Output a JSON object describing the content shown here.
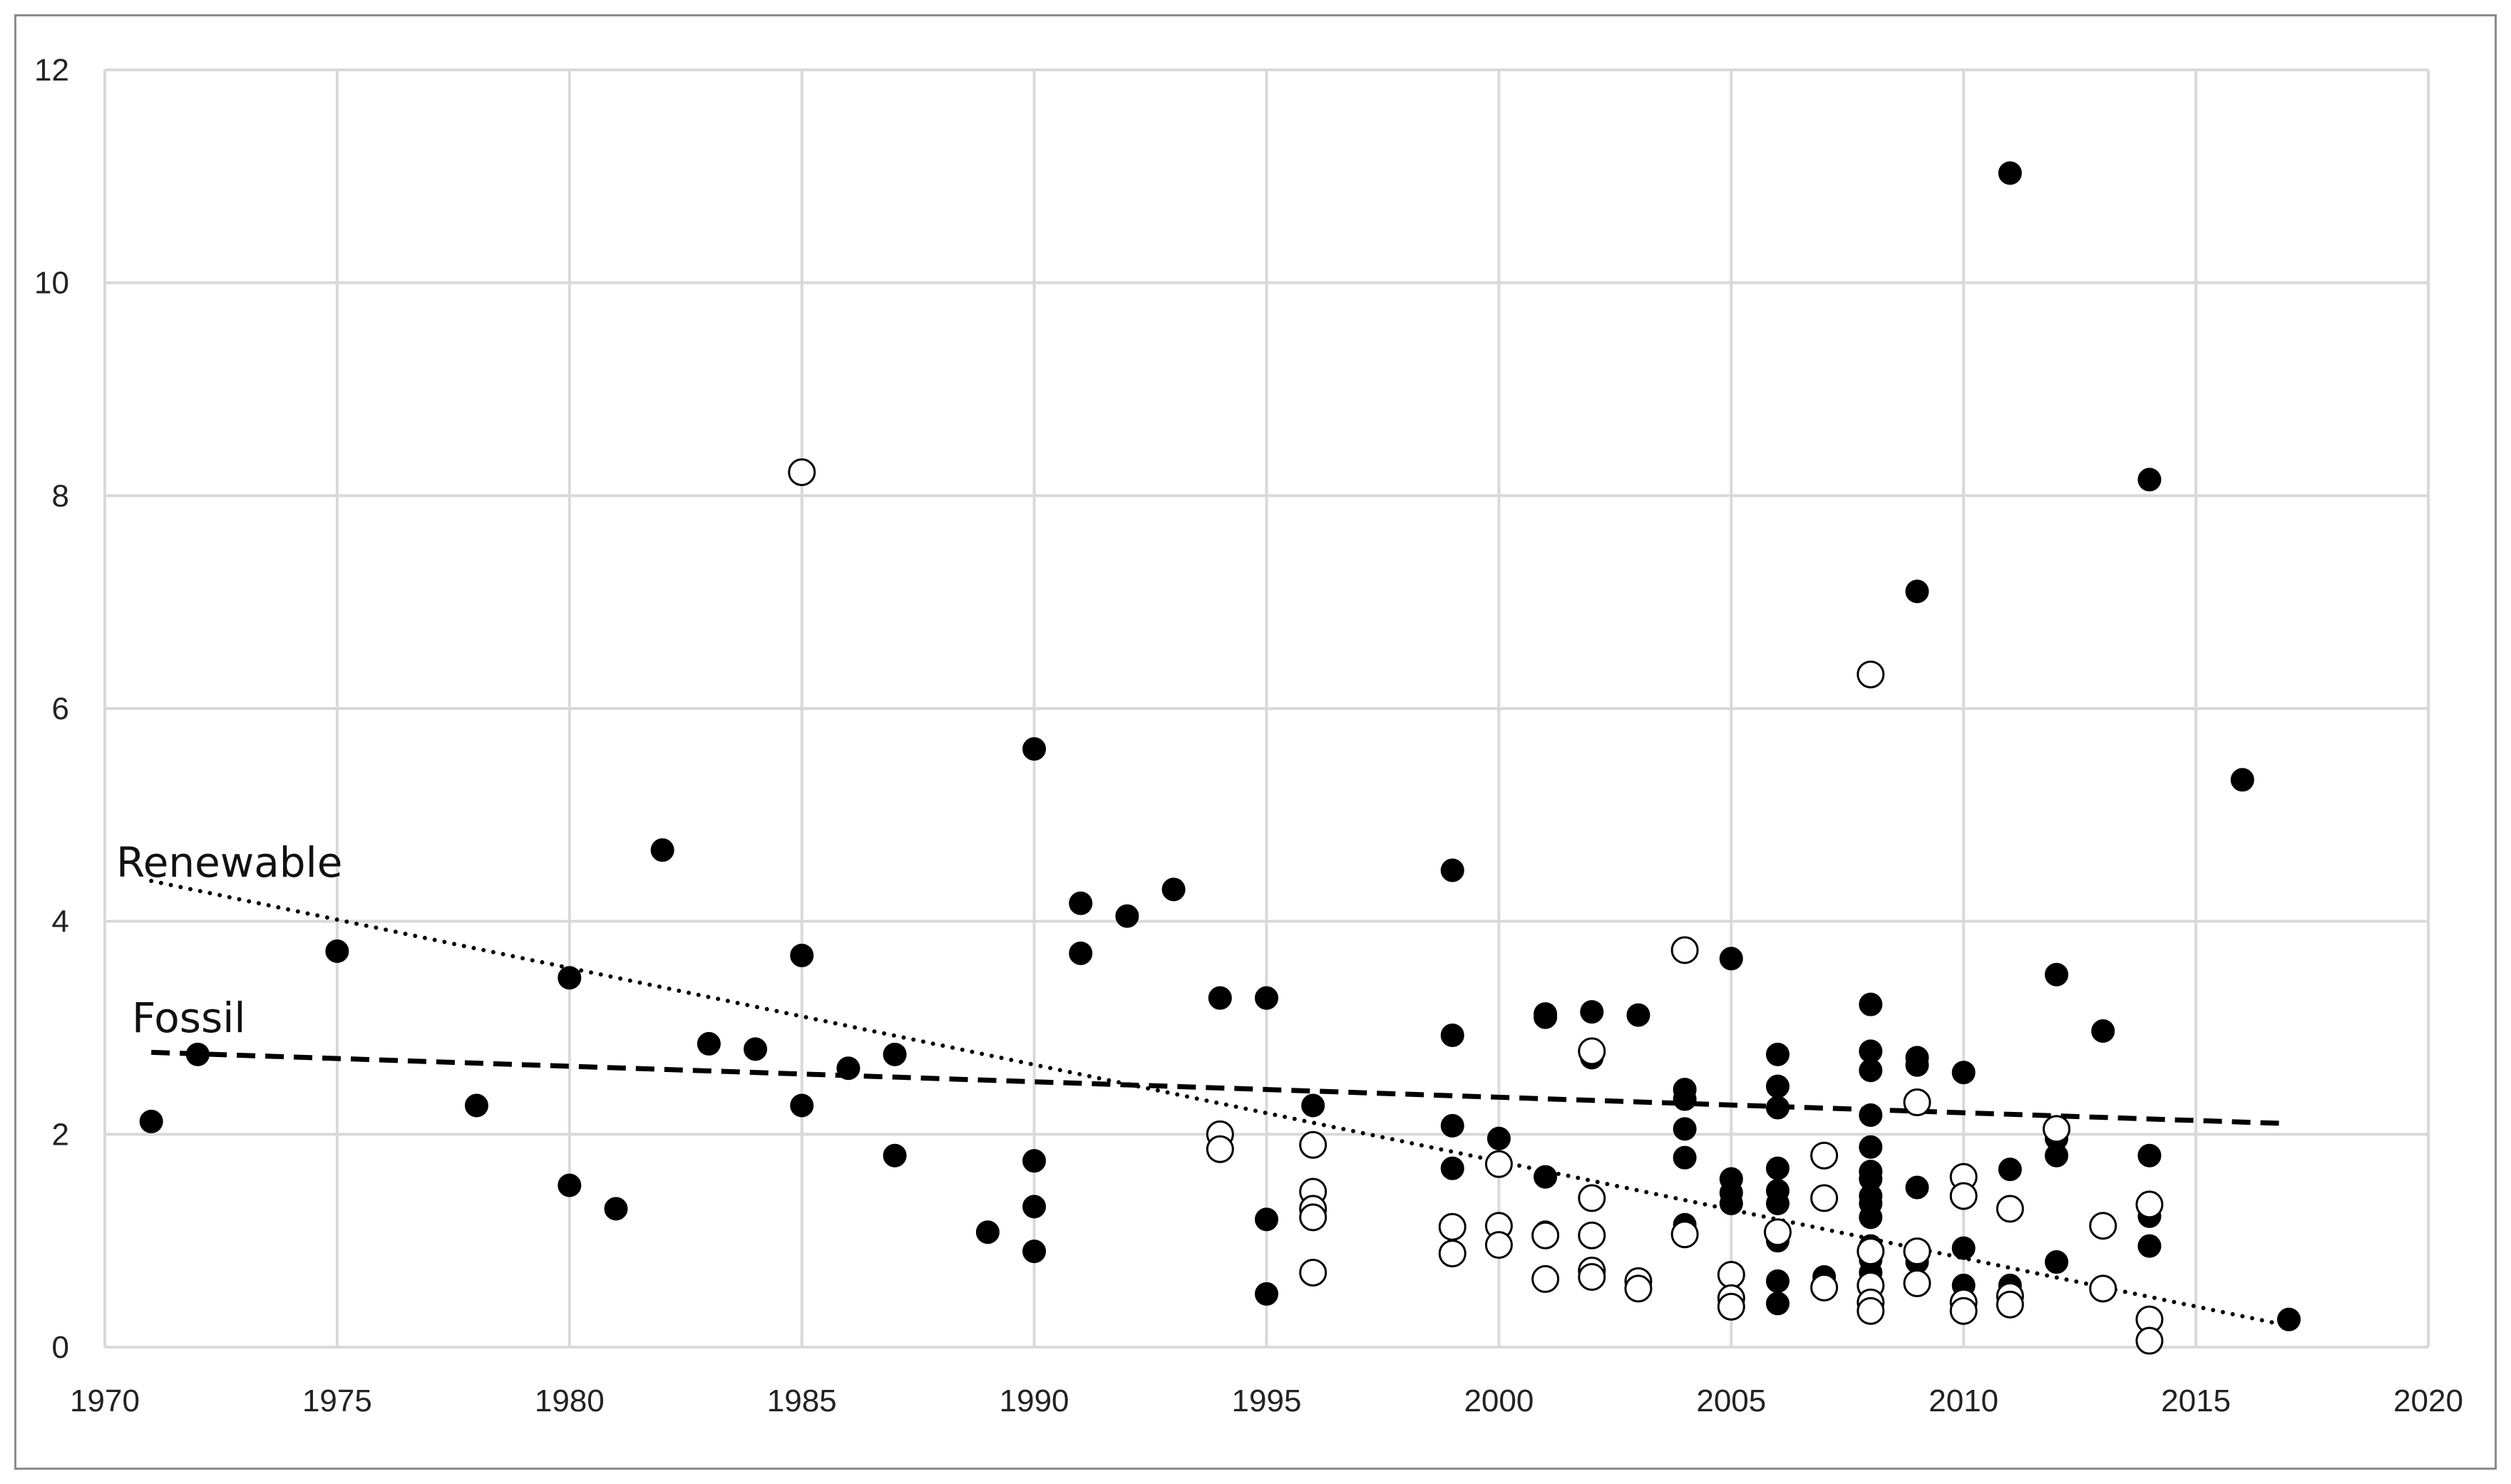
{
  "chart_data": {
    "type": "scatter",
    "title": "",
    "xlabel": "",
    "ylabel": "",
    "xlim": [
      1970,
      2020
    ],
    "ylim": [
      0,
      12
    ],
    "x_ticks": [
      1970,
      1975,
      1980,
      1985,
      1990,
      1995,
      2000,
      2005,
      2010,
      2015,
      2020
    ],
    "y_ticks": [
      0,
      2,
      4,
      6,
      8,
      10,
      12
    ],
    "grid": true,
    "legend": "none",
    "colors": {
      "grid": "#d9d9d9",
      "filled": "#000000",
      "hollow_stroke": "#000000",
      "hollow_fill": "#ffffff"
    },
    "series": [
      {
        "marker": "filled-circle",
        "points": [
          [
            1971,
            2.12
          ],
          [
            1972,
            2.75
          ],
          [
            1975,
            3.72
          ],
          [
            1978,
            2.27
          ],
          [
            1980,
            3.47
          ],
          [
            1980,
            1.52
          ],
          [
            1981,
            1.3
          ],
          [
            1982,
            4.67
          ],
          [
            1983,
            2.85
          ],
          [
            1984,
            2.8
          ],
          [
            1985,
            3.68
          ],
          [
            1985,
            2.27
          ],
          [
            1986,
            2.62
          ],
          [
            1987,
            2.75
          ],
          [
            1987,
            1.8
          ],
          [
            1989,
            1.08
          ],
          [
            1990,
            5.62
          ],
          [
            1990,
            1.75
          ],
          [
            1990,
            1.32
          ],
          [
            1990,
            0.9
          ],
          [
            1991,
            4.17
          ],
          [
            1991,
            3.7
          ],
          [
            1992,
            4.05
          ],
          [
            1993,
            4.3
          ],
          [
            1994,
            3.28
          ],
          [
            1995,
            3.28
          ],
          [
            1995,
            1.2
          ],
          [
            1995,
            0.5
          ],
          [
            1996,
            2.27
          ],
          [
            1999,
            4.48
          ],
          [
            1999,
            2.93
          ],
          [
            1999,
            2.08
          ],
          [
            1999,
            1.68
          ],
          [
            1999,
            1.13
          ],
          [
            2000,
            1.96
          ],
          [
            2001,
            3.13
          ],
          [
            2001,
            3.1
          ],
          [
            2001,
            1.6
          ],
          [
            2001,
            1.08
          ],
          [
            2002,
            3.15
          ],
          [
            2002,
            2.72
          ],
          [
            2003,
            3.12
          ],
          [
            2004,
            2.42
          ],
          [
            2004,
            2.33
          ],
          [
            2004,
            2.05
          ],
          [
            2004,
            1.78
          ],
          [
            2004,
            1.15
          ],
          [
            2005,
            3.65
          ],
          [
            2005,
            1.58
          ],
          [
            2005,
            1.45
          ],
          [
            2005,
            1.35
          ],
          [
            2006,
            2.75
          ],
          [
            2006,
            2.45
          ],
          [
            2006,
            2.25
          ],
          [
            2006,
            1.68
          ],
          [
            2006,
            1.47
          ],
          [
            2006,
            1.35
          ],
          [
            2006,
            1.0
          ],
          [
            2006,
            0.62
          ],
          [
            2006,
            0.41
          ],
          [
            2007,
            0.66
          ],
          [
            2008,
            3.22
          ],
          [
            2008,
            2.78
          ],
          [
            2008,
            2.6
          ],
          [
            2008,
            2.18
          ],
          [
            2008,
            1.88
          ],
          [
            2008,
            1.65
          ],
          [
            2008,
            1.58
          ],
          [
            2008,
            1.42
          ],
          [
            2008,
            1.35
          ],
          [
            2008,
            1.22
          ],
          [
            2008,
            0.95
          ],
          [
            2008,
            0.82
          ],
          [
            2008,
            0.7
          ],
          [
            2009,
            7.1
          ],
          [
            2009,
            2.72
          ],
          [
            2009,
            2.65
          ],
          [
            2009,
            1.5
          ],
          [
            2009,
            0.8
          ],
          [
            2010,
            2.58
          ],
          [
            2010,
            1.4
          ],
          [
            2010,
            0.93
          ],
          [
            2010,
            0.58
          ],
          [
            2011,
            11.03
          ],
          [
            2011,
            1.67
          ],
          [
            2011,
            0.58
          ],
          [
            2012,
            3.5
          ],
          [
            2012,
            1.96
          ],
          [
            2012,
            1.8
          ],
          [
            2012,
            0.8
          ],
          [
            2013,
            2.97
          ],
          [
            2014,
            8.15
          ],
          [
            2014,
            1.8
          ],
          [
            2014,
            1.23
          ],
          [
            2014,
            0.95
          ],
          [
            2016,
            5.33
          ],
          [
            2017,
            0.26
          ]
        ]
      },
      {
        "marker": "hollow-circle",
        "points": [
          [
            1985,
            8.22
          ],
          [
            1994,
            2.0
          ],
          [
            1994,
            1.86
          ],
          [
            1996,
            1.9
          ],
          [
            1996,
            1.46
          ],
          [
            1996,
            1.3
          ],
          [
            1996,
            1.22
          ],
          [
            1996,
            0.7
          ],
          [
            1999,
            1.13
          ],
          [
            1999,
            0.88
          ],
          [
            2000,
            1.72
          ],
          [
            2000,
            1.14
          ],
          [
            2000,
            0.96
          ],
          [
            2001,
            1.05
          ],
          [
            2001,
            0.64
          ],
          [
            2002,
            2.78
          ],
          [
            2002,
            1.4
          ],
          [
            2002,
            1.05
          ],
          [
            2002,
            0.72
          ],
          [
            2002,
            0.66
          ],
          [
            2003,
            0.62
          ],
          [
            2003,
            0.55
          ],
          [
            2004,
            3.73
          ],
          [
            2004,
            1.06
          ],
          [
            2005,
            0.68
          ],
          [
            2005,
            0.46
          ],
          [
            2005,
            0.38
          ],
          [
            2006,
            1.08
          ],
          [
            2007,
            1.8
          ],
          [
            2007,
            1.4
          ],
          [
            2007,
            0.56
          ],
          [
            2008,
            6.32
          ],
          [
            2008,
            0.9
          ],
          [
            2008,
            0.58
          ],
          [
            2008,
            0.42
          ],
          [
            2008,
            0.34
          ],
          [
            2009,
            2.3
          ],
          [
            2009,
            0.9
          ],
          [
            2009,
            0.6
          ],
          [
            2010,
            1.6
          ],
          [
            2010,
            1.42
          ],
          [
            2010,
            0.42
          ],
          [
            2010,
            0.34
          ],
          [
            2011,
            1.3
          ],
          [
            2011,
            0.48
          ],
          [
            2011,
            0.4
          ],
          [
            2012,
            2.05
          ],
          [
            2013,
            1.14
          ],
          [
            2013,
            0.55
          ],
          [
            2014,
            1.34
          ],
          [
            2014,
            0.26
          ],
          [
            2014,
            0.06
          ]
        ]
      }
    ],
    "trendlines": [
      {
        "label": "Renewable",
        "style": "dotted",
        "start": [
          1971,
          4.38
        ],
        "end": [
          2017,
          0.2
        ]
      },
      {
        "label": "Fossil",
        "style": "dashed",
        "start": [
          1971,
          2.77
        ],
        "end": [
          2017,
          2.1
        ]
      }
    ]
  }
}
